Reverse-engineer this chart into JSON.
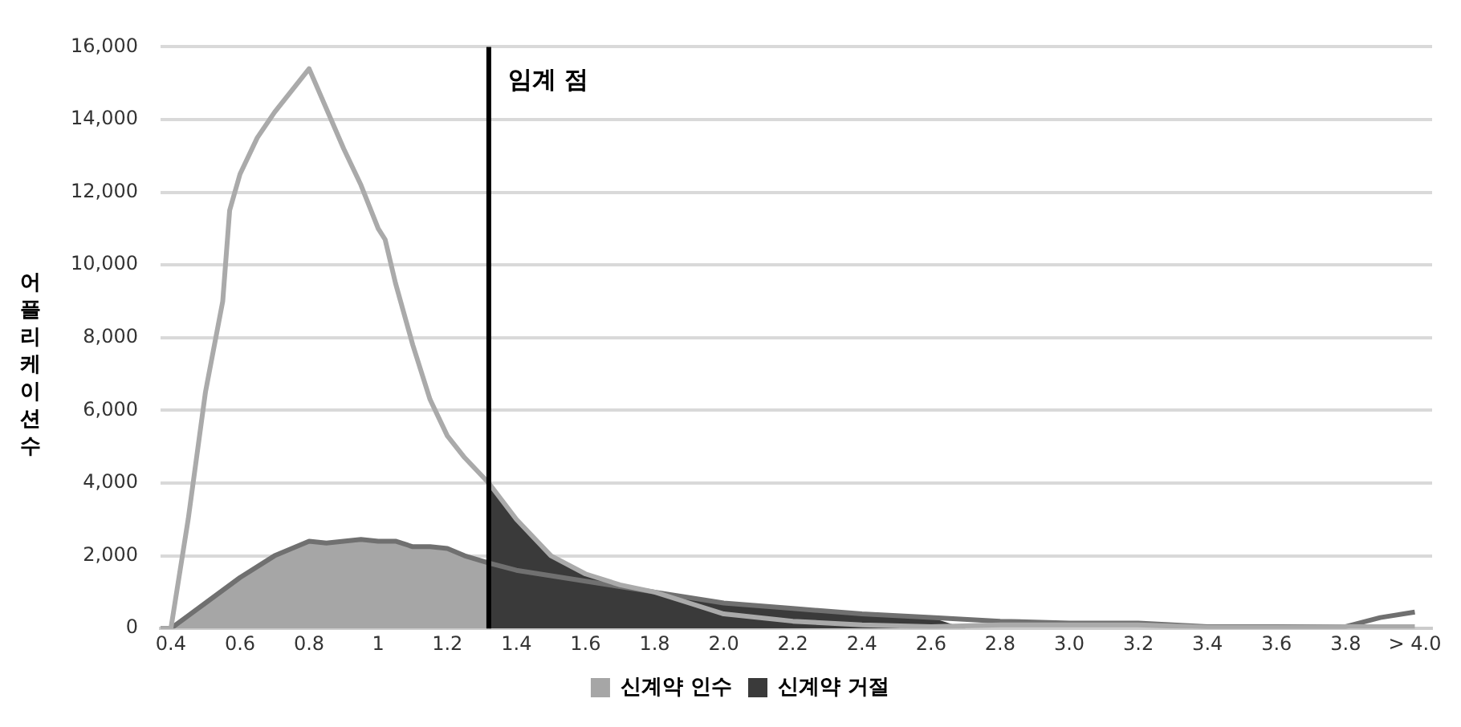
{
  "chart_data": {
    "type": "line",
    "ylabel": "어플리케이션수",
    "xlim": [
      0.37,
      4.05
    ],
    "xticks": [
      {
        "value": 0.4,
        "label": "0.4"
      },
      {
        "value": 0.6,
        "label": "0.6"
      },
      {
        "value": 0.8,
        "label": "0.8"
      },
      1,
      {
        "value": 1.2,
        "label": "1.2"
      },
      {
        "value": 1.4,
        "label": "1.4"
      },
      {
        "value": 1.6,
        "label": "1.6"
      },
      {
        "value": 1.8,
        "label": "1.8"
      },
      {
        "value": 2.0,
        "label": "2.0"
      },
      {
        "value": 2.2,
        "label": "2.2"
      },
      {
        "value": 2.4,
        "label": "2.4"
      },
      {
        "value": 2.6,
        "label": "2.6"
      },
      {
        "value": 2.8,
        "label": "2.8"
      },
      {
        "value": 3.0,
        "label": "3.0"
      },
      {
        "value": 3.2,
        "label": "3.2"
      },
      {
        "value": 3.4,
        "label": "3.4"
      },
      {
        "value": 3.6,
        "label": "3.6"
      },
      {
        "value": 3.8,
        "label": "3.8"
      },
      {
        "value": 4.0,
        "label": "> 4.0"
      }
    ],
    "ylim": [
      0,
      16000
    ],
    "yticks": [
      {
        "value": 0,
        "label": "0"
      },
      {
        "value": 2000,
        "label": "2,000"
      },
      {
        "value": 4000,
        "label": "4,000"
      },
      {
        "value": 6000,
        "label": "6,000"
      },
      {
        "value": 8000,
        "label": "8,000"
      },
      {
        "value": 10000,
        "label": "10,000"
      },
      {
        "value": 12000,
        "label": "12,000"
      },
      {
        "value": 14000,
        "label": "14,000"
      },
      {
        "value": 16000,
        "label": "16,000"
      }
    ],
    "grid": "y",
    "legend": "bottom",
    "marker": "none",
    "ref_lines": [
      {
        "axis": "x",
        "value": 1.32,
        "label": "임계 점",
        "color": "#000000"
      }
    ],
    "series": [
      {
        "name": "신계약 인수",
        "type": "area",
        "color": "#a6a6a6",
        "x": [
          0.37,
          0.4,
          0.5,
          0.6,
          0.7,
          0.75,
          0.8,
          0.85,
          0.95,
          1.0,
          1.05,
          1.1,
          1.15,
          1.2,
          1.25,
          1.32
        ],
        "values": [
          0,
          0,
          700,
          1400,
          2000,
          2200,
          2400,
          2350,
          2450,
          2400,
          2400,
          2250,
          2250,
          2200,
          2000,
          1800
        ]
      },
      {
        "name": "신계약 거절",
        "type": "area",
        "color": "#3a3a3a",
        "x": [
          1.32,
          1.4,
          1.5,
          1.6,
          1.7,
          1.8,
          2.0,
          2.2,
          2.4,
          2.6,
          2.7
        ],
        "values": [
          4000,
          3000,
          2000,
          1500,
          1200,
          1000,
          700,
          550,
          400,
          300,
          0
        ]
      },
      {
        "color": "#aaaaaa",
        "x": [
          0.37,
          0.4,
          0.45,
          0.5,
          0.55,
          0.57,
          0.6,
          0.65,
          0.7,
          0.8,
          0.9,
          0.95,
          1.0,
          1.02,
          1.05,
          1.1,
          1.15,
          1.2,
          1.25,
          1.32,
          1.4,
          1.5,
          1.6,
          1.7,
          1.8,
          1.9,
          2.0,
          2.2,
          2.4,
          2.6,
          2.8,
          3.0,
          3.2,
          3.4,
          3.6,
          3.8,
          4.0
        ],
        "values": [
          0,
          0,
          3000,
          6500,
          9000,
          11500,
          12500,
          13500,
          14200,
          15400,
          13200,
          12200,
          11000,
          10700,
          9500,
          7800,
          6300,
          5300,
          4700,
          4000,
          3000,
          2000,
          1500,
          1200,
          1000,
          700,
          400,
          200,
          100,
          50,
          100,
          100,
          100,
          30,
          30,
          50,
          50
        ]
      },
      {
        "color": "#707070",
        "x": [
          0.37,
          0.4,
          0.5,
          0.6,
          0.7,
          0.75,
          0.8,
          0.85,
          0.95,
          1.0,
          1.05,
          1.1,
          1.15,
          1.2,
          1.25,
          1.32,
          1.4,
          1.6,
          1.8,
          2.0,
          2.2,
          2.4,
          2.6,
          2.8,
          3.0,
          3.2,
          3.4,
          3.6,
          3.8,
          3.9,
          4.0
        ],
        "values": [
          0,
          0,
          700,
          1400,
          2000,
          2200,
          2400,
          2350,
          2450,
          2400,
          2400,
          2250,
          2250,
          2200,
          2000,
          1800,
          1600,
          1300,
          1000,
          700,
          550,
          400,
          300,
          200,
          150,
          150,
          50,
          50,
          50,
          300,
          450
        ]
      }
    ]
  }
}
